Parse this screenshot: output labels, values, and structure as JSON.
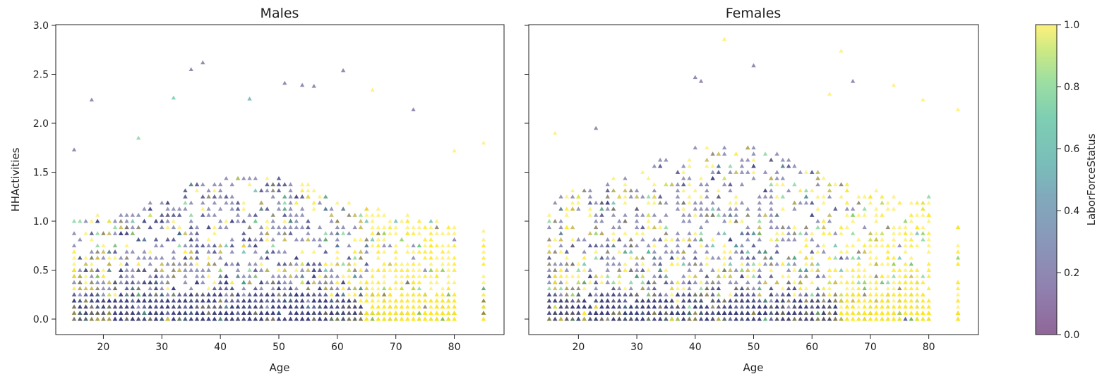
{
  "chart_data": [
    {
      "type": "scatter",
      "title": "Males",
      "xlabel": "Age",
      "ylabel": "HHActivities",
      "xlim": [
        15,
        85
      ],
      "ylim": [
        0,
        3.0
      ],
      "xticks": [
        "20",
        "30",
        "40",
        "50",
        "60",
        "70",
        "80"
      ],
      "xtick_values": [
        20,
        30,
        40,
        50,
        60,
        70,
        80
      ],
      "yticks": [
        "0.0",
        "0.5",
        "1.0",
        "1.5",
        "2.0",
        "2.5",
        "3.0"
      ],
      "ytick_values": [
        0,
        0.5,
        1.0,
        1.5,
        2.0,
        2.5,
        3.0
      ],
      "marker": "triangle",
      "color_field": "LaborForceStatus",
      "sample_points": [
        {
          "x": 15,
          "y": 1.73,
          "c": 0.1
        },
        {
          "x": 18,
          "y": 2.24,
          "c": 0.1
        },
        {
          "x": 32,
          "y": 2.26,
          "c": 0.7
        },
        {
          "x": 35,
          "y": 2.55,
          "c": 0.1
        },
        {
          "x": 37,
          "y": 2.62,
          "c": 0.1
        },
        {
          "x": 45,
          "y": 2.25,
          "c": 0.5
        },
        {
          "x": 51,
          "y": 2.41,
          "c": 0.1
        },
        {
          "x": 54,
          "y": 2.39,
          "c": 0.1
        },
        {
          "x": 56,
          "y": 2.38,
          "c": 0.1
        },
        {
          "x": 61,
          "y": 2.54,
          "c": 0.1
        },
        {
          "x": 66,
          "y": 2.34,
          "c": 1.0
        },
        {
          "x": 73,
          "y": 2.14,
          "c": 0.1
        },
        {
          "x": 26,
          "y": 1.85,
          "c": 0.8
        },
        {
          "x": 85,
          "y": 1.8,
          "c": 1.0
        },
        {
          "x": 80,
          "y": 1.72,
          "c": 1.0
        },
        {
          "x": 85,
          "y": 0.9,
          "c": 1.0
        }
      ]
    },
    {
      "type": "scatter",
      "title": "Females",
      "xlabel": "Age",
      "ylabel": "",
      "xlim": [
        15,
        85
      ],
      "ylim": [
        0,
        3.0
      ],
      "xticks": [
        "20",
        "30",
        "40",
        "50",
        "60",
        "70",
        "80"
      ],
      "xtick_values": [
        20,
        30,
        40,
        50,
        60,
        70,
        80
      ],
      "yticks": [],
      "marker": "triangle",
      "color_field": "LaborForceStatus",
      "sample_points": [
        {
          "x": 45,
          "y": 2.86,
          "c": 1.0
        },
        {
          "x": 65,
          "y": 2.74,
          "c": 1.0
        },
        {
          "x": 40,
          "y": 2.47,
          "c": 0.1
        },
        {
          "x": 41,
          "y": 2.43,
          "c": 0.1
        },
        {
          "x": 50,
          "y": 2.59,
          "c": 0.1
        },
        {
          "x": 67,
          "y": 2.43,
          "c": 0.1
        },
        {
          "x": 74,
          "y": 2.39,
          "c": 1.0
        },
        {
          "x": 79,
          "y": 2.24,
          "c": 1.0
        },
        {
          "x": 85,
          "y": 2.14,
          "c": 1.0
        },
        {
          "x": 16,
          "y": 1.9,
          "c": 1.0
        },
        {
          "x": 23,
          "y": 1.95,
          "c": 0.1
        },
        {
          "x": 63,
          "y": 2.3,
          "c": 1.0
        }
      ]
    }
  ],
  "colorbar": {
    "label": "LaborForceStatus",
    "range": [
      0.0,
      1.0
    ],
    "ticks": [
      "0.0",
      "0.2",
      "0.4",
      "0.6",
      "0.8",
      "1.0"
    ],
    "tick_values": [
      0,
      0.2,
      0.4,
      0.6,
      0.8,
      1.0
    ],
    "colormap": "viridis",
    "alpha": 0.55
  },
  "colors": {
    "low": "#404a8c",
    "mid": "#3b9c8a",
    "high": "#fde725"
  }
}
